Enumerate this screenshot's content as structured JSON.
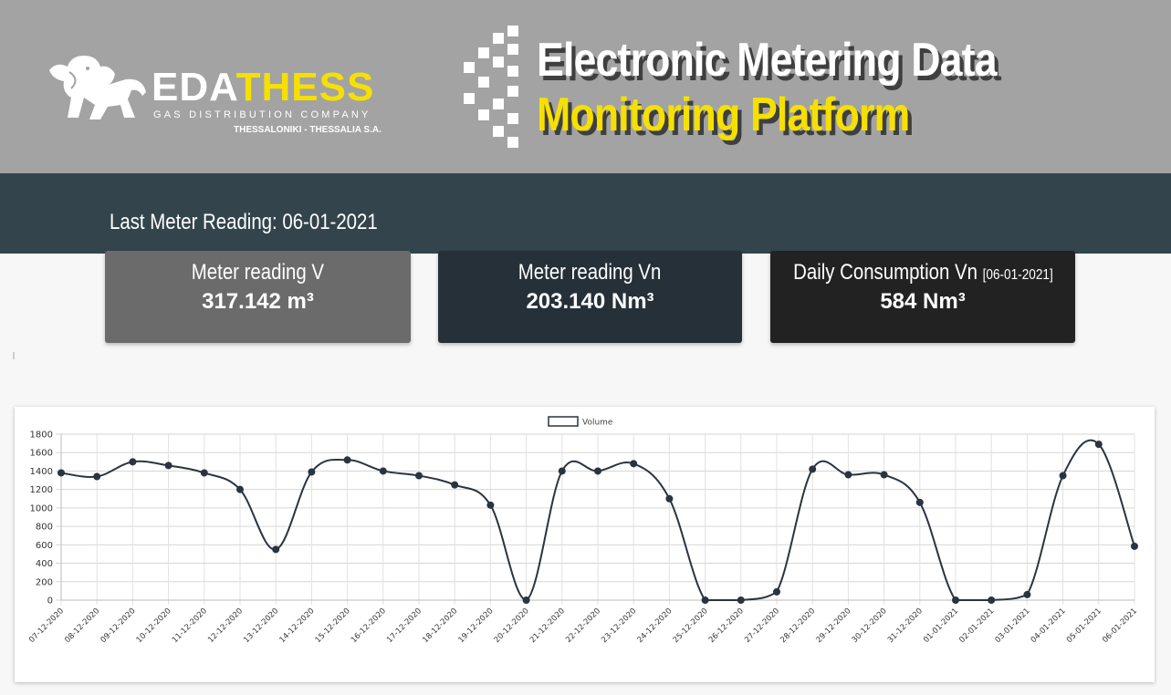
{
  "header": {
    "brand_main_white": "EDA",
    "brand_main_yellow": "THESS",
    "brand_sub1": "GAS DISTRIBUTION COMPANY",
    "brand_sub2": "THESSALONIKI - THESSALIA S.A.",
    "title_line1": "Electronic Metering Data",
    "title_line2": "Monitoring Platform"
  },
  "last_reading": "Last Meter Reading: 06-01-2021",
  "cards": [
    {
      "title": "Meter reading V",
      "value": "317.142 m³",
      "color": "#6b6b6b"
    },
    {
      "title": "Meter reading Vn",
      "value": "203.140 Nm³",
      "color": "#253038"
    },
    {
      "title": "Daily Consumption Vn",
      "title_suffix": "[06-01-2021]",
      "value": "584 Nm³",
      "color": "#222222"
    }
  ],
  "colors": {
    "brand_yellow": "#f6e000",
    "header_gray": "#a3a3a3",
    "band": "#33444d",
    "line": "#2a3440"
  },
  "chart_data": {
    "type": "line",
    "legend": "Volume",
    "legend_position": "top",
    "grid": true,
    "ylim": [
      0,
      1800
    ],
    "yticks": [
      0,
      200,
      400,
      600,
      800,
      1000,
      1200,
      1400,
      1600,
      1800
    ],
    "categories": [
      "07-12-2020",
      "08-12-2020",
      "09-12-2020",
      "10-12-2020",
      "11-12-2020",
      "12-12-2020",
      "13-12-2020",
      "14-12-2020",
      "15-12-2020",
      "16-12-2020",
      "17-12-2020",
      "18-12-2020",
      "19-12-2020",
      "20-12-2020",
      "21-12-2020",
      "22-12-2020",
      "23-12-2020",
      "24-12-2020",
      "25-12-2020",
      "26-12-2020",
      "27-12-2020",
      "28-12-2020",
      "29-12-2020",
      "30-12-2020",
      "31-12-2020",
      "01-01-2021",
      "02-01-2021",
      "03-01-2021",
      "04-01-2021",
      "05-01-2021",
      "06-01-2021"
    ],
    "series": [
      {
        "name": "Volume",
        "values": [
          1380,
          1340,
          1500,
          1460,
          1380,
          1200,
          550,
          1390,
          1520,
          1400,
          1350,
          1250,
          1030,
          0,
          1400,
          1400,
          1480,
          1100,
          0,
          0,
          90,
          1420,
          1360,
          1360,
          1060,
          0,
          0,
          60,
          1350,
          1690,
          584
        ]
      }
    ]
  }
}
